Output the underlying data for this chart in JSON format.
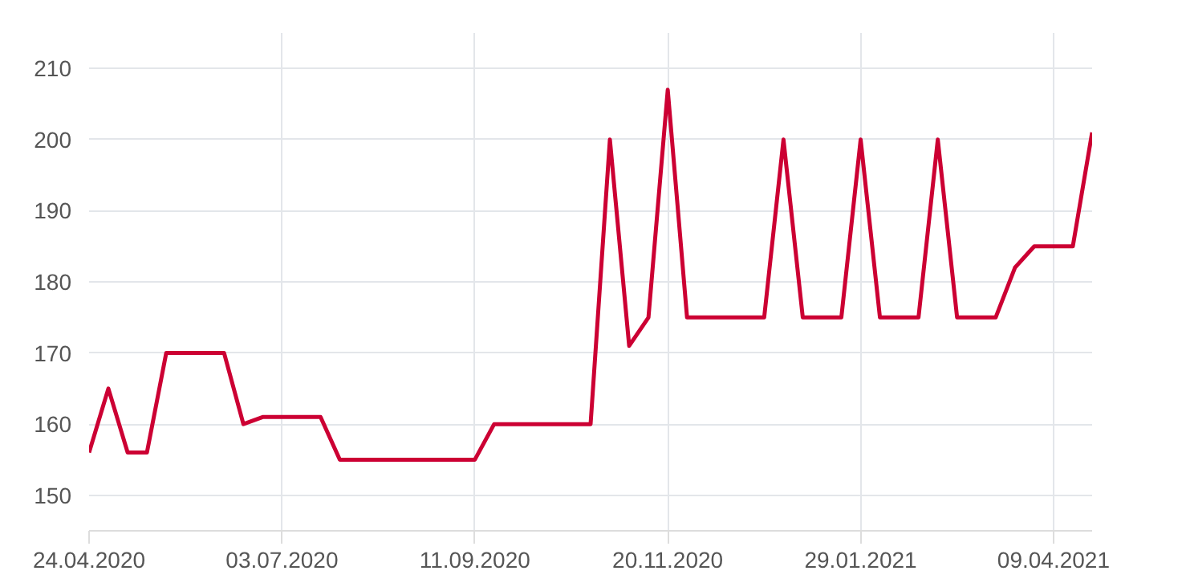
{
  "chart_data": {
    "type": "line",
    "x": [
      "2020-04-24",
      "2020-05-01",
      "2020-05-08",
      "2020-05-15",
      "2020-05-22",
      "2020-05-29",
      "2020-06-05",
      "2020-06-12",
      "2020-06-19",
      "2020-06-26",
      "2020-07-03",
      "2020-07-10",
      "2020-07-17",
      "2020-07-24",
      "2020-07-31",
      "2020-08-07",
      "2020-08-14",
      "2020-08-21",
      "2020-08-28",
      "2020-09-04",
      "2020-09-11",
      "2020-09-18",
      "2020-09-25",
      "2020-10-02",
      "2020-10-09",
      "2020-10-16",
      "2020-10-23",
      "2020-10-30",
      "2020-11-06",
      "2020-11-13",
      "2020-11-20",
      "2020-11-27",
      "2020-12-04",
      "2020-12-11",
      "2020-12-18",
      "2020-12-25",
      "2021-01-01",
      "2021-01-08",
      "2021-01-15",
      "2021-01-22",
      "2021-01-29",
      "2021-02-05",
      "2021-02-12",
      "2021-02-19",
      "2021-02-26",
      "2021-03-05",
      "2021-03-12",
      "2021-03-19",
      "2021-03-26",
      "2021-04-02",
      "2021-04-09",
      "2021-04-16",
      "2021-04-23"
    ],
    "series": [
      {
        "color": "#cc0033",
        "values": [
          156,
          165,
          156,
          156,
          170,
          170,
          170,
          170,
          160,
          161,
          161,
          161,
          161,
          155,
          155,
          155,
          155,
          155,
          155,
          155,
          155,
          160,
          160,
          160,
          160,
          160,
          160,
          200,
          171,
          175,
          207,
          175,
          175,
          175,
          175,
          175,
          200,
          175,
          175,
          175,
          200,
          175,
          175,
          175,
          200,
          175,
          175,
          175,
          182,
          185,
          185,
          185,
          201
        ]
      }
    ],
    "xlim": [
      "2020-04-24",
      "2021-04-23"
    ],
    "xticks": [
      {
        "value": "2020-04-24",
        "label": "24.04.2020"
      },
      {
        "value": "2020-07-03",
        "label": "03.07.2020"
      },
      {
        "value": "2020-09-11",
        "label": "11.09.2020"
      },
      {
        "value": "2020-11-20",
        "label": "20.11.2020"
      },
      {
        "value": "2021-01-29",
        "label": "29.01.2021"
      },
      {
        "value": "2021-04-09",
        "label": "09.04.2021"
      }
    ],
    "ylim": [
      145,
      215
    ],
    "yticks": [
      150,
      160,
      170,
      180,
      190,
      200,
      210
    ],
    "grid": true,
    "marker": "none",
    "line_style": "solid"
  }
}
